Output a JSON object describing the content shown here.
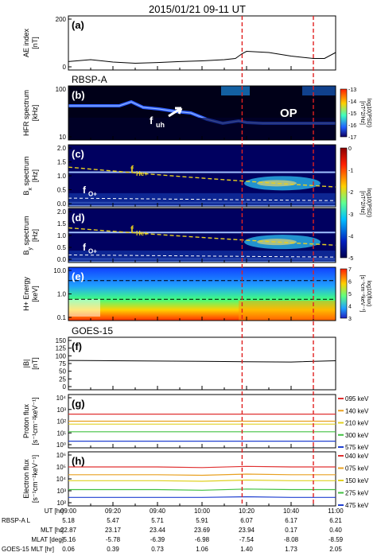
{
  "figure": {
    "title": "2015/01/21 09-11 UT",
    "section_rbsp": "RBSP-A",
    "section_goes": "GOES-15"
  },
  "panels": [
    {
      "id": "a",
      "label": "(a)",
      "ylabel": [
        "AE index",
        "[nT]"
      ],
      "yticks": [
        "200",
        "0"
      ]
    },
    {
      "id": "b",
      "label": "(b)",
      "ylabel": [
        "HFR spectrum",
        "[kHz]"
      ],
      "yticks": [
        "100",
        "10"
      ],
      "annotations": {
        "fuh": "f",
        "fuh_sub": "uh",
        "op": "OP"
      },
      "colorbar": {
        "ticks": [
          "-13",
          "-14",
          "-15",
          "-16",
          "-17"
        ],
        "label": "log10(PSD)",
        "unit": "[nT^2/Hz]"
      }
    },
    {
      "id": "c",
      "label": "(c)",
      "ylabel": [
        "B",
        "x",
        " spectrum",
        "[Hz]"
      ],
      "yticks": [
        "2.0",
        "1.5",
        "1.0",
        "0.5",
        "0.0"
      ],
      "annotations": {
        "fhe": "f",
        "fhe_sub": "He+",
        "fo": "f",
        "fo_sub": "O+"
      },
      "colorbar": {
        "ticks": [
          "0",
          "-1",
          "-2",
          "-3",
          "-4",
          "-5"
        ],
        "label": "log10(PSD)",
        "unit": "[nT^2/Hz]"
      }
    },
    {
      "id": "d",
      "label": "(d)",
      "ylabel": [
        "B",
        "y",
        " spectrum",
        "[Hz]"
      ],
      "yticks": [
        "2.0",
        "1.5",
        "1.0",
        "0.5",
        "0.0"
      ],
      "annotations": {
        "fhe": "f",
        "fhe_sub": "He+",
        "fo": "f",
        "fo_sub": "O+"
      }
    },
    {
      "id": "e",
      "label": "(e)",
      "ylabel": [
        "H+ Energy",
        "[keV]"
      ],
      "yticks": [
        "10.0",
        "1.0",
        "0.1"
      ],
      "colorbar": {
        "ticks": [
          "7",
          "6",
          "5",
          "4",
          "3"
        ],
        "label": "log10(flux)",
        "unit": "[s⁻¹cm⁻²keV⁻¹]"
      }
    },
    {
      "id": "f",
      "label": "(f)",
      "ylabel": [
        "|B|",
        "[nT]"
      ],
      "yticks": [
        "150",
        "125",
        "100",
        "75",
        "50",
        "25",
        "0"
      ]
    },
    {
      "id": "g",
      "label": "(g)",
      "ylabel": [
        "Proton flux",
        "[s⁻¹cm⁻²keV⁻¹]"
      ],
      "yticks": [
        "10⁴",
        "10³",
        "10²",
        "10¹",
        "10⁰"
      ],
      "legend": [
        {
          "text": "095 keV",
          "color": "#e03030"
        },
        {
          "text": "140 keV",
          "color": "#e8a020"
        },
        {
          "text": "210 keV",
          "color": "#e0d020"
        },
        {
          "text": "300 keV",
          "color": "#40c040"
        },
        {
          "text": "575 keV",
          "color": "#2040d0"
        }
      ]
    },
    {
      "id": "h",
      "label": "(h)",
      "ylabel": [
        "Electron flux",
        "[s⁻¹cm⁻²keV⁻¹]"
      ],
      "yticks": [
        "10⁶",
        "10⁵",
        "10⁴",
        "10³",
        "10²"
      ],
      "legend": [
        {
          "text": "040 keV",
          "color": "#e03030"
        },
        {
          "text": "075 keV",
          "color": "#e8a020"
        },
        {
          "text": "150 keV",
          "color": "#e0d020"
        },
        {
          "text": "275 keV",
          "color": "#40c040"
        },
        {
          "text": "475 keV",
          "color": "#2040d0"
        }
      ]
    }
  ],
  "xaxis": {
    "rows": [
      {
        "label": "UT [hr]",
        "values": [
          "09:00",
          "09:20",
          "09:40",
          "10:00",
          "10:20",
          "10:40",
          "11:00"
        ]
      },
      {
        "label": "RBSP-A  L",
        "values": [
          "5.18",
          "5.47",
          "5.71",
          "5.91",
          "6.07",
          "6.17",
          "6.21"
        ]
      },
      {
        "label": "MLT [hr]",
        "values": [
          "22.87",
          "23.17",
          "23.44",
          "23.69",
          "23.94",
          "0.17",
          "0.40"
        ]
      },
      {
        "label": "MLAT [deg]",
        "values": [
          "-5.16",
          "-5.78",
          "-6.39",
          "-6.98",
          "-7.54",
          "-8.08",
          "-8.59"
        ]
      },
      {
        "label": "GOES-15 MLT [hr]",
        "values": [
          "0.06",
          "0.39",
          "0.73",
          "1.06",
          "1.40",
          "1.73",
          "2.05"
        ]
      }
    ]
  },
  "colors": {
    "event_line": "#e02020",
    "fhe_line": "#e8d020"
  },
  "chart_data": [
    {
      "type": "line",
      "panel": "a",
      "ylim": [
        0,
        200
      ],
      "x": [
        "09:00",
        "09:10",
        "09:20",
        "09:30",
        "09:40",
        "09:50",
        "10:00",
        "10:10",
        "10:15",
        "10:18",
        "10:20",
        "10:30",
        "10:40",
        "10:50",
        "10:55",
        "11:00"
      ],
      "values": [
        22,
        30,
        20,
        15,
        18,
        22,
        25,
        30,
        35,
        55,
        65,
        60,
        45,
        35,
        35,
        60
      ]
    },
    {
      "type": "line",
      "panel": "f",
      "ylim": [
        0,
        150
      ],
      "x": [
        "09:00",
        "09:20",
        "09:40",
        "10:00",
        "10:20",
        "10:40",
        "11:00"
      ],
      "values": [
        85,
        84,
        83,
        82,
        81,
        80,
        84
      ]
    },
    {
      "type": "line",
      "panel": "g",
      "ylim_log": [
        0,
        4
      ],
      "series": [
        {
          "name": "095 keV",
          "values": [
            2.6,
            2.6,
            2.6,
            2.6,
            2.6,
            2.6,
            2.6
          ]
        },
        {
          "name": "140 keV",
          "values": [
            2.0,
            2.0,
            2.0,
            2.0,
            2.0,
            2.0,
            2.0
          ]
        },
        {
          "name": "210 keV",
          "values": [
            1.75,
            1.75,
            1.75,
            1.75,
            1.75,
            1.75,
            1.75
          ]
        },
        {
          "name": "300 keV",
          "values": [
            1.1,
            1.1,
            1.1,
            1.1,
            1.1,
            1.1,
            1.1
          ]
        },
        {
          "name": "575 keV",
          "values": [
            0.3,
            0.3,
            0.3,
            0.3,
            0.3,
            0.3,
            0.3
          ]
        }
      ],
      "x": [
        "09:00",
        "09:20",
        "09:40",
        "10:00",
        "10:20",
        "10:40",
        "11:00"
      ]
    },
    {
      "type": "line",
      "panel": "h",
      "ylim_log": [
        2,
        6
      ],
      "series": [
        {
          "name": "040 keV",
          "values": [
            5.0,
            5.0,
            5.0,
            4.95,
            5.05,
            5.0,
            5.0
          ]
        },
        {
          "name": "075 keV",
          "values": [
            4.35,
            4.35,
            4.35,
            4.3,
            4.4,
            4.35,
            4.35
          ]
        },
        {
          "name": "150 keV",
          "values": [
            3.85,
            3.85,
            3.85,
            3.8,
            3.9,
            3.85,
            3.85
          ]
        },
        {
          "name": "275 keV",
          "values": [
            3.1,
            3.1,
            3.1,
            3.05,
            3.15,
            3.1,
            3.1
          ]
        },
        {
          "name": "475 keV",
          "values": [
            2.45,
            2.45,
            2.45,
            2.45,
            2.5,
            2.45,
            2.45
          ]
        }
      ],
      "x": [
        "09:00",
        "09:20",
        "09:40",
        "10:00",
        "10:20",
        "10:40",
        "11:00"
      ]
    }
  ]
}
